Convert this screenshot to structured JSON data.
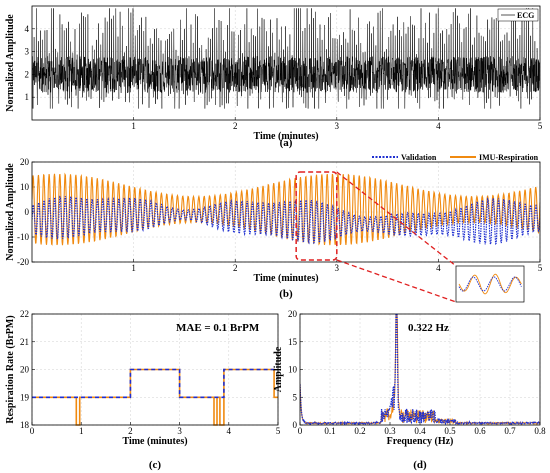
{
  "chart_data": [
    {
      "id": "a",
      "type": "line",
      "panel_label": "(a)",
      "xlabel": "Time (minutes)",
      "ylabel": "Normalized Amplitude",
      "xlim": [
        0,
        5
      ],
      "ylim": [
        0,
        5
      ],
      "xticks": [
        1,
        2,
        3,
        4,
        5
      ],
      "yticks": [
        1,
        2,
        3,
        4
      ],
      "grid": true,
      "legend": "top-right",
      "series": [
        {
          "name": "ECG",
          "color": "#000000",
          "baseline": 2.0,
          "amplitude_range": [
            0.5,
            4.9
          ],
          "description_values": "dense noisy ECG trace centered near 2"
        }
      ]
    },
    {
      "id": "b",
      "type": "line",
      "panel_label": "(b)",
      "xlabel": "Time (minutes)",
      "ylabel": "Normalized Amplitude",
      "xlim": [
        0,
        5
      ],
      "ylim": [
        -20,
        20
      ],
      "xticks": [
        1,
        2,
        3,
        4,
        5
      ],
      "yticks": [
        -20,
        -10,
        0,
        10,
        20
      ],
      "grid": true,
      "legend": "top-right",
      "series": [
        {
          "name": "Validation",
          "color": "#1f2fd0",
          "style": "dotted",
          "amplitude": 8
        },
        {
          "name": "IMU-Respiration",
          "color": "#f08a10",
          "style": "solid",
          "amplitude": 13
        }
      ],
      "zoom_window": [
        2.6,
        3.0
      ]
    },
    {
      "id": "c",
      "type": "line",
      "panel_label": "(c)",
      "xlabel": "Time (minutes)",
      "ylabel": "Respiration Rate (BrPM)",
      "xlim": [
        0,
        5
      ],
      "ylim": [
        18,
        22
      ],
      "xticks": [
        0,
        1,
        2,
        3,
        4,
        5
      ],
      "yticks": [
        18,
        19,
        20,
        21,
        22
      ],
      "grid": true,
      "annotation": "MAE = 0.1 BrPM",
      "series": [
        {
          "name": "Validation",
          "color": "#1f2fd0",
          "style": "dashed",
          "x": [
            0,
            2,
            2,
            3,
            3,
            3.9,
            3.9,
            5
          ],
          "y": [
            19,
            19,
            20,
            20,
            19,
            19,
            20,
            20
          ]
        },
        {
          "name": "IMU-Respiration",
          "color": "#f08a10",
          "style": "solid",
          "x": [
            0,
            0.9,
            0.9,
            0.97,
            0.97,
            2,
            2,
            3,
            3,
            3.7,
            3.7,
            3.76,
            3.76,
            3.82,
            3.82,
            3.9,
            3.9,
            4.92,
            4.92,
            5
          ],
          "y": [
            19,
            19,
            18,
            18,
            19,
            19,
            20,
            20,
            19,
            19,
            18,
            18,
            19,
            19,
            18,
            18,
            20,
            20,
            19,
            19
          ]
        }
      ]
    },
    {
      "id": "d",
      "type": "line",
      "panel_label": "(d)",
      "xlabel": "Frequency (Hz)",
      "ylabel": "Amplitude",
      "xlim": [
        0,
        0.8
      ],
      "ylim": [
        0,
        20
      ],
      "xticks": [
        0,
        0.1,
        0.2,
        0.3,
        0.4,
        0.5,
        0.6,
        0.7,
        0.8
      ],
      "yticks": [
        0,
        5,
        10,
        15,
        20
      ],
      "grid": true,
      "annotation": "0.322 Hz",
      "series": [
        {
          "name": "Validation",
          "color": "#1f2fd0",
          "style": "dotted",
          "peak_hz": 0.322,
          "peak_amp": 20
        },
        {
          "name": "IMU-Respiration",
          "color": "#f08a10",
          "style": "solid",
          "peak_hz": 0.322,
          "peak_amp": 19
        }
      ]
    }
  ]
}
